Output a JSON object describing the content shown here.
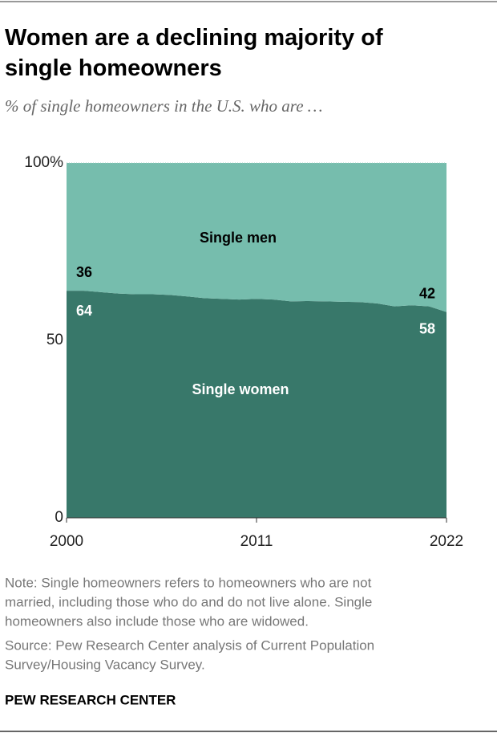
{
  "chart_data": {
    "type": "stacked-area",
    "title": "Women are a declining majority of single homeowners",
    "subtitle": "% of single homeowners in the U.S. who are …",
    "x": [
      2000,
      2001,
      2002,
      2003,
      2004,
      2005,
      2006,
      2007,
      2008,
      2009,
      2010,
      2011,
      2012,
      2013,
      2014,
      2015,
      2016,
      2017,
      2018,
      2019,
      2020,
      2021,
      2022
    ],
    "series": [
      {
        "name": "Single women",
        "color": "#38786a",
        "values": [
          64,
          64,
          63.6,
          63.2,
          63,
          63,
          62.8,
          62.4,
          61.9,
          61.7,
          61.5,
          61.7,
          61.5,
          61,
          61.1,
          61,
          60.9,
          60.8,
          60.4,
          59.6,
          59.9,
          59.6,
          58
        ]
      },
      {
        "name": "Single men",
        "color": "#76bdad",
        "values": [
          36,
          36,
          36.4,
          36.8,
          37,
          37,
          37.2,
          37.6,
          38.1,
          38.3,
          38.5,
          38.3,
          38.5,
          39,
          38.9,
          39,
          39.1,
          39.2,
          39.6,
          40.4,
          40.1,
          40.4,
          42
        ]
      }
    ],
    "xlim": [
      2000,
      2022
    ],
    "xticks": [
      2000,
      2011,
      2022
    ],
    "ylim": [
      0,
      100
    ],
    "yticks": [
      0,
      50,
      {
        "value": 100,
        "label": "100%"
      }
    ],
    "note": [
      "Note: Single homeowners refers to homeowners who are not",
      "married, including those who do and do not live alone. Single",
      "homeowners also include those who are widowed."
    ],
    "source": [
      "Source: Pew Research Center analysis of Current Population",
      "Survey/Housing Vacancy Survey."
    ],
    "credit": "PEW RESEARCH CENTER"
  }
}
